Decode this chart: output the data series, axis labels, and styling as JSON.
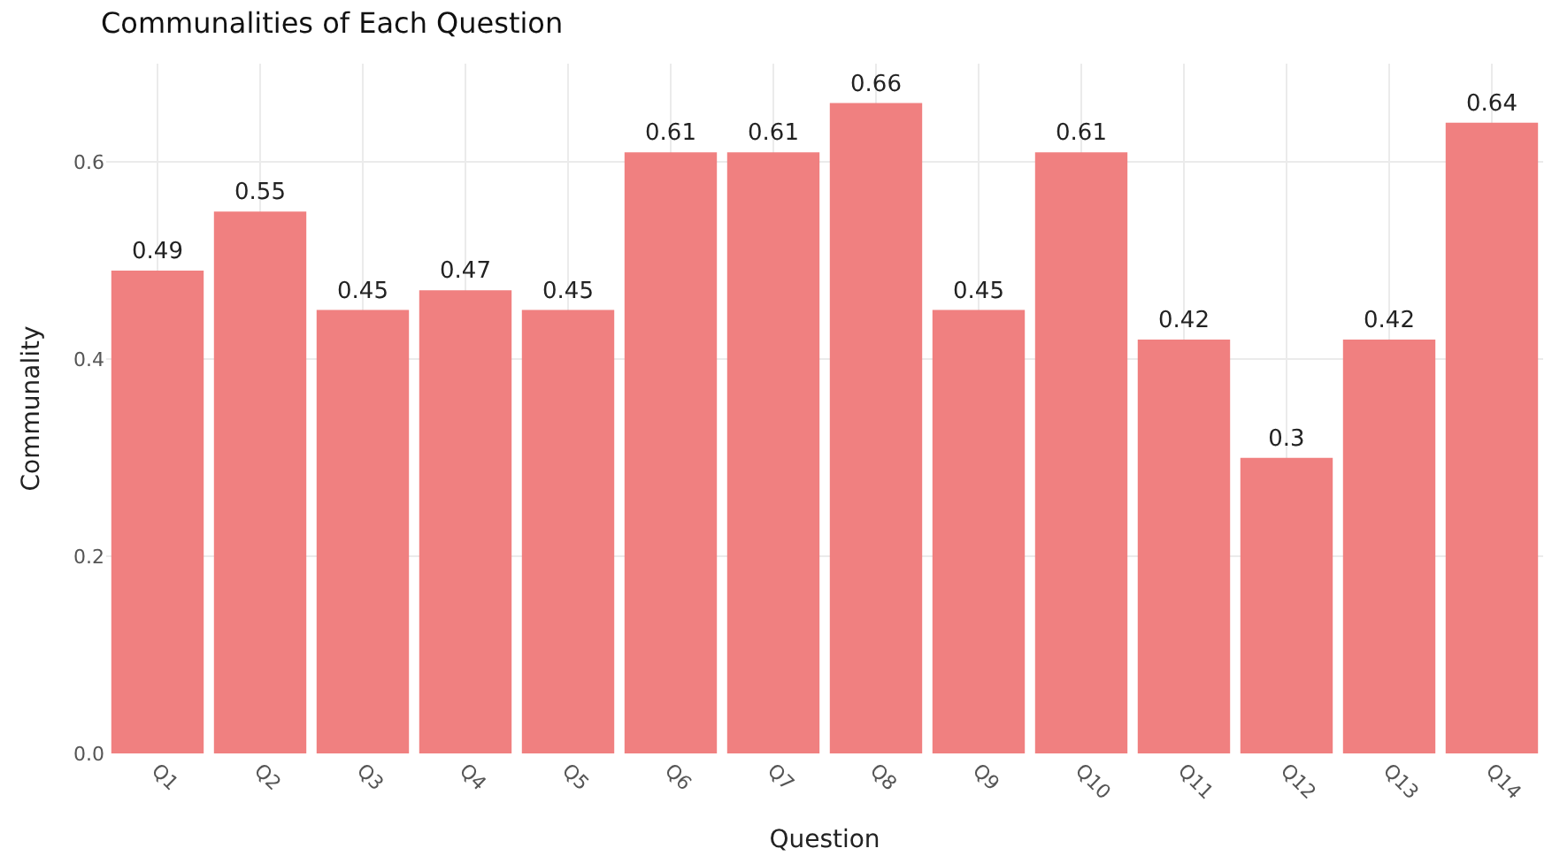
{
  "chart_data": {
    "type": "bar",
    "title": "Communalities of Each Question",
    "xlabel": "Question",
    "ylabel": "Communality",
    "categories": [
      "Q1",
      "Q2",
      "Q3",
      "Q4",
      "Q5",
      "Q6",
      "Q7",
      "Q8",
      "Q9",
      "Q10",
      "Q11",
      "Q12",
      "Q13",
      "Q14"
    ],
    "values": [
      0.49,
      0.55,
      0.45,
      0.47,
      0.45,
      0.61,
      0.61,
      0.66,
      0.45,
      0.61,
      0.42,
      0.3,
      0.42,
      0.64
    ],
    "color": "#f08080",
    "data_labels": true,
    "ylim": [
      0,
      0.7
    ],
    "yticks": [
      {
        "value": 0,
        "label": "0.0"
      },
      {
        "value": 0.2,
        "label": "0.2"
      },
      {
        "value": 0.4,
        "label": "0.4"
      },
      {
        "value": 0.6,
        "label": "0.6"
      }
    ],
    "grid": true,
    "legend": false
  }
}
